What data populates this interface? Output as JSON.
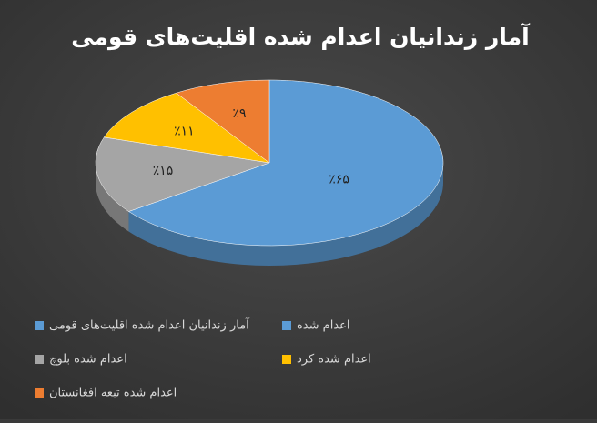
{
  "chart_data": {
    "type": "pie3d",
    "title": "آمار زندانیان اعدام شده اقلیت‌های قومی",
    "categories": [
      "اعدام شده",
      "اعدام شده بلوچ",
      "اعدام شده کرد",
      "اعدام شده تبعه افغانستان"
    ],
    "series": [
      {
        "name": "آمار زندانیان اعدام شده اقلیت‌های قومی",
        "colors": [
          "#5b9bd5",
          "#a5a5a5",
          "#ffc000",
          "#ed7d31"
        ],
        "values": [
          65,
          15,
          11,
          9
        ],
        "value_labels": [
          "٪۶۵",
          "٪۱۵",
          "٪۱۱",
          "٪۹"
        ]
      }
    ],
    "legend": "bottom"
  }
}
